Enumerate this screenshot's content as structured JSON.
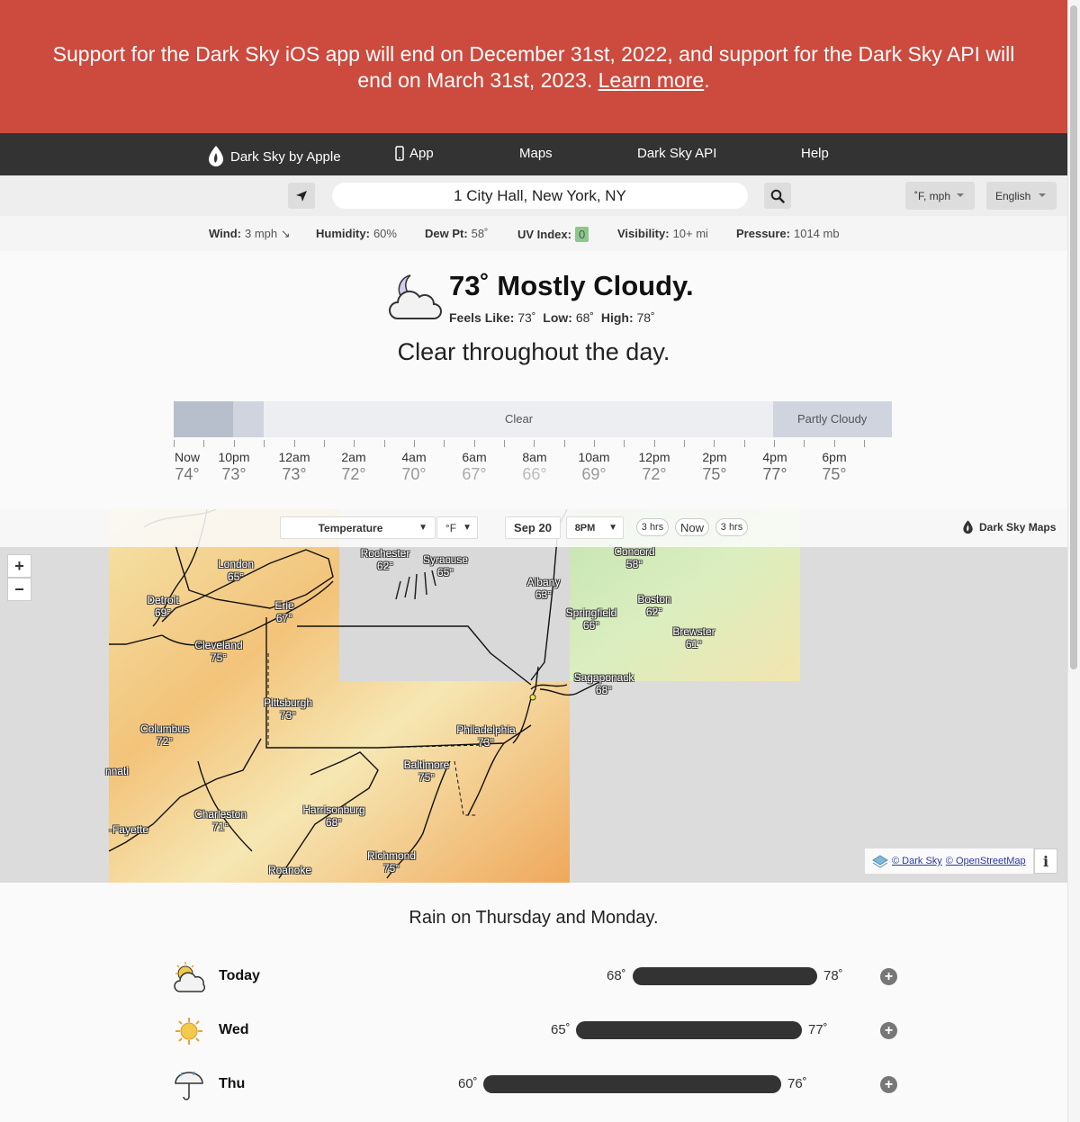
{
  "banner": {
    "text": "Support for the Dark Sky iOS app will end on December 31st, 2022, and support for the Dark Sky API will end on March 31st, 2023.",
    "link": "Learn more",
    "suffix": "."
  },
  "nav": {
    "brand": "Dark Sky by Apple",
    "app": "App",
    "maps": "Maps",
    "api": "Dark Sky API",
    "help": "Help"
  },
  "search": {
    "location": "1 City Hall, New York, NY",
    "units": "˚F, mph",
    "language": "English"
  },
  "conditions": [
    {
      "label": "Wind:",
      "value": "3 mph ↘"
    },
    {
      "label": "Humidity:",
      "value": "60%"
    },
    {
      "label": "Dew Pt:",
      "value": "58˚"
    },
    {
      "label": "UV Index:",
      "value": "0"
    },
    {
      "label": "Visibility:",
      "value": "10+ mi"
    },
    {
      "label": "Pressure:",
      "value": "1014 mb"
    }
  ],
  "current": {
    "icon": "partly-cloudy-night-icon",
    "title": "73˚ Mostly Cloudy.",
    "feels_label": "Feels Like:",
    "feels": "73˚",
    "low_label": "Low:",
    "low": "68˚",
    "high_label": "High:",
    "high": "78˚",
    "summary": "Clear throughout the day."
  },
  "timeline": {
    "segments": [
      {
        "label": "",
        "color": "#b8bfcc"
      },
      {
        "label": "",
        "color": "#cfd4de"
      },
      {
        "label": "Clear",
        "color": "#eceef2"
      },
      {
        "label": "Partly Cloudy",
        "color": "#cfd4de"
      }
    ],
    "hours": [
      {
        "time": "Now",
        "temp": "74°",
        "color": "#777777"
      },
      {
        "time": "10pm",
        "temp": "73°",
        "color": "#777777"
      },
      {
        "time": "12am",
        "temp": "73°",
        "color": "#777777"
      },
      {
        "time": "2am",
        "temp": "72°",
        "color": "#888888"
      },
      {
        "time": "4am",
        "temp": "70°",
        "color": "#999999"
      },
      {
        "time": "6am",
        "temp": "67°",
        "color": "#aaaaaa"
      },
      {
        "time": "8am",
        "temp": "66°",
        "color": "#bbbbbb"
      },
      {
        "time": "10am",
        "temp": "69°",
        "color": "#999999"
      },
      {
        "time": "12pm",
        "temp": "72°",
        "color": "#888888"
      },
      {
        "time": "2pm",
        "temp": "75°",
        "color": "#777777"
      },
      {
        "time": "4pm",
        "temp": "77°",
        "color": "#666666"
      },
      {
        "time": "6pm",
        "temp": "75°",
        "color": "#777777"
      }
    ]
  },
  "map": {
    "layer": "Temperature",
    "unit": "°F",
    "date": "Sep 20",
    "time": "8PM",
    "back": "3 hrs",
    "now": "Now",
    "forward": "3 hrs",
    "brand": "Dark Sky Maps",
    "zoom_in": "+",
    "zoom_out": "−",
    "attr_darksky": "© Dark Sky",
    "attr_osm": "© OpenStreetMap",
    "info": "i",
    "cities": [
      {
        "name": "London",
        "temp": "65°"
      },
      {
        "name": "Detroit",
        "temp": "69°"
      },
      {
        "name": "Erie",
        "temp": "67°"
      },
      {
        "name": "Cleveland",
        "temp": "75°"
      },
      {
        "name": "Rochester",
        "temp": "62°"
      },
      {
        "name": "Syracuse",
        "temp": "65°"
      },
      {
        "name": "Albany",
        "temp": "63°"
      },
      {
        "name": "Concord",
        "temp": "58°"
      },
      {
        "name": "Boston",
        "temp": "62°"
      },
      {
        "name": "Springfield",
        "temp": "66°"
      },
      {
        "name": "Brewster",
        "temp": "61°"
      },
      {
        "name": "Sagaponack",
        "temp": "68°"
      },
      {
        "name": "Pittsburgh",
        "temp": "73°"
      },
      {
        "name": "Columbus",
        "temp": "72°"
      },
      {
        "name": "Philadelphia",
        "temp": "73°"
      },
      {
        "name": "Baltimore",
        "temp": "75°"
      },
      {
        "name": "Charleston",
        "temp": "71°"
      },
      {
        "name": "Harrisonburg",
        "temp": "68°"
      },
      {
        "name": "Richmond",
        "temp": "75°"
      },
      {
        "name": "Roanoke",
        "temp": ""
      },
      {
        "name": "nnati",
        "temp": ""
      },
      {
        "name": "-Fayette",
        "temp": ""
      }
    ]
  },
  "week": {
    "summary": "Rain on Thursday and Monday.",
    "days": [
      {
        "name": "Today",
        "icon": "partly-cloudy-day-icon",
        "low": "68˚",
        "high": "78˚"
      },
      {
        "name": "Wed",
        "icon": "clear-day-icon",
        "low": "65˚",
        "high": "77˚"
      },
      {
        "name": "Thu",
        "icon": "rain-icon",
        "low": "60˚",
        "high": "76˚"
      }
    ]
  }
}
